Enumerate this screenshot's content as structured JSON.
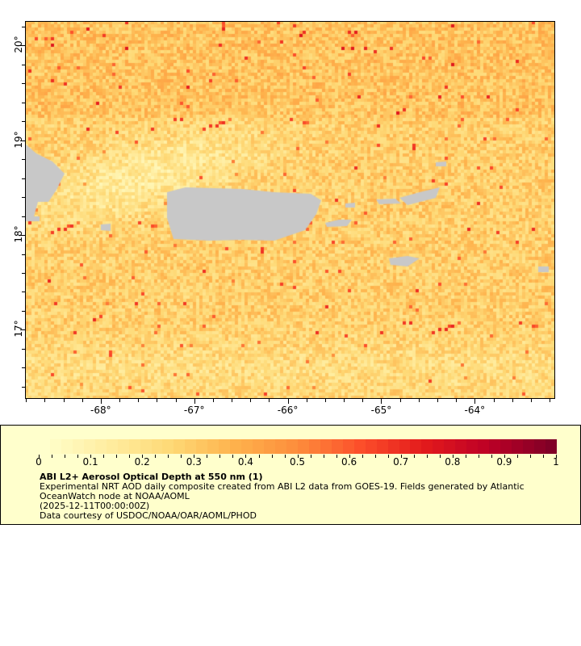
{
  "map": {
    "lon_range": [
      -68.81,
      -63.14
    ],
    "lat_range": [
      16.27,
      20.26
    ],
    "lat_ticks": [
      {
        "value": 20,
        "label": "20°"
      },
      {
        "value": 19,
        "label": "19°"
      },
      {
        "value": 18,
        "label": "18°"
      },
      {
        "value": 17,
        "label": "17°"
      }
    ],
    "lon_ticks": [
      {
        "value": -68,
        "label": "-68°"
      },
      {
        "value": -67,
        "label": "-67°"
      },
      {
        "value": -66,
        "label": "-66°"
      },
      {
        "value": -65,
        "label": "-65°"
      },
      {
        "value": -64,
        "label": "-64°"
      }
    ],
    "land_color": "#c8c8c8",
    "colormap": [
      "#ffffcc",
      "#ffeda0",
      "#fed976",
      "#feb24c",
      "#fd8d3c",
      "#fc4e2a",
      "#e31a1c",
      "#bd0026",
      "#800026"
    ]
  },
  "legend": {
    "colorbar_range": [
      0,
      1
    ],
    "colorbar_labels": [
      "0",
      "0.1",
      "0.2",
      "0.3",
      "0.4",
      "0.5",
      "0.6",
      "0.7",
      "0.8",
      "0.9",
      "1"
    ],
    "title": "ABI L2+ Aerosol Optical Depth at 550 nm (1)",
    "line1": "Experimental NRT AOD daily composite created from ABI L2 data from GOES-19. Fields generated by Atlantic",
    "line2": "OceanWatch node at NOAA/AOML",
    "line3": "(2025-12-11T00:00:00Z)",
    "line4": "Data courtesy of USDOC/NOAA/OAR/AOML/PHOD",
    "background": "#ffffcc"
  }
}
